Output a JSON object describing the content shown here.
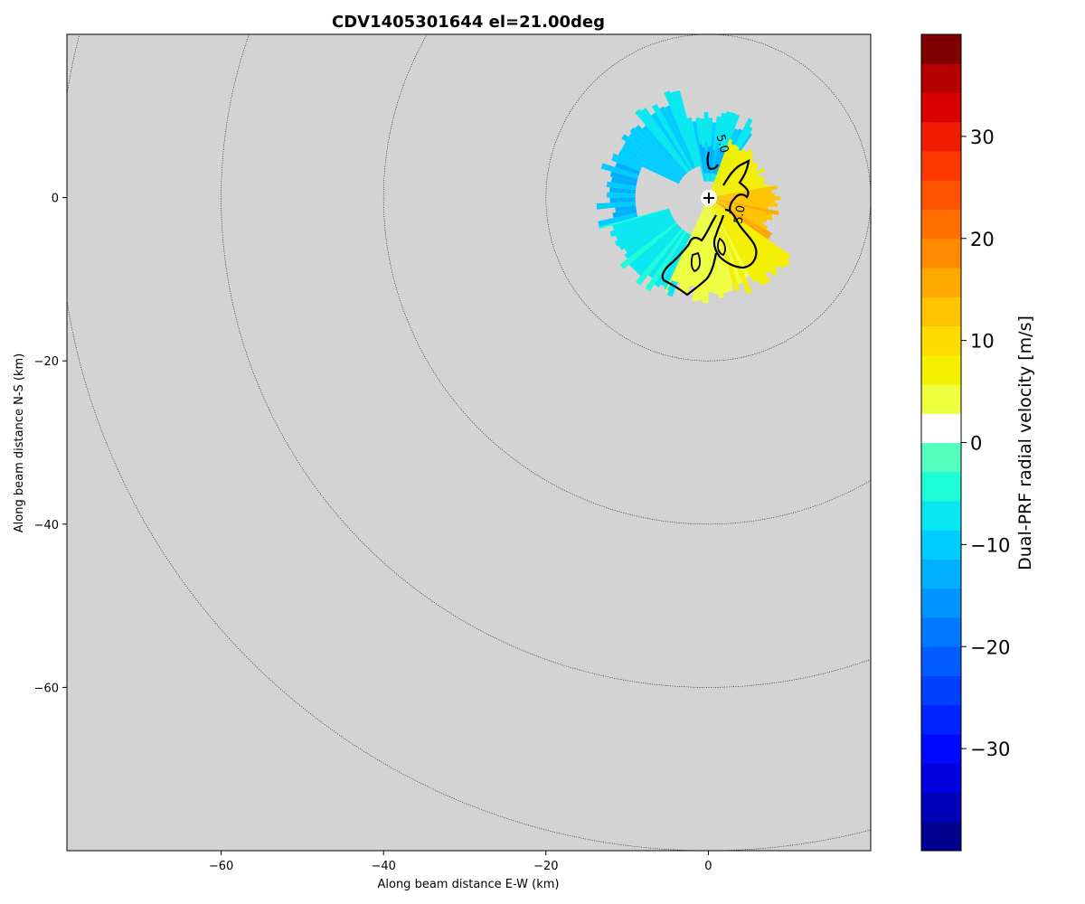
{
  "chart_data": {
    "type": "heatmap",
    "title": "CDV1405301644 el=21.00deg",
    "xlabel": "Along beam distance E-W (km)",
    "ylabel": "Along beam distance N-S (km)",
    "xlim": [
      -79,
      20
    ],
    "ylim": [
      -80,
      20
    ],
    "xticks": [
      -60,
      -40,
      -20,
      0
    ],
    "xtick_labels": [
      "−60",
      "−40",
      "−20",
      "0"
    ],
    "yticks": [
      0,
      -20,
      -40,
      -60
    ],
    "ytick_labels": [
      "0",
      "−20",
      "−40",
      "−60"
    ],
    "grid": false,
    "background": "#d3d3d3",
    "radar_center": [
      0,
      0
    ],
    "range_rings_km": [
      20,
      40,
      60,
      80
    ],
    "contour_level": 5.0,
    "contour_label": "5.0",
    "colorbar": {
      "label": "Dual-PRF radial velocity [m/s]",
      "vmin": -40,
      "vmax": 40,
      "levels": 28,
      "ticks": [
        30,
        20,
        10,
        0,
        -10,
        -20,
        -30
      ],
      "tick_labels": [
        "30",
        "20",
        "10",
        "0",
        "−10",
        "−20",
        "−30"
      ],
      "colors": [
        "#00008f",
        "#0000b7",
        "#0000df",
        "#0008ff",
        "#0024ff",
        "#0040ff",
        "#005cff",
        "#0078ff",
        "#0094ff",
        "#00b0ff",
        "#00ccff",
        "#08e8f0",
        "#1efdd8",
        "#55ffc0",
        "#ffffff",
        "#eeff40",
        "#f4f000",
        "#ffdc00",
        "#ffc400",
        "#ffa800",
        "#ff8c00",
        "#ff7000",
        "#ff5400",
        "#ff3800",
        "#f01c00",
        "#d80000",
        "#b40000",
        "#800000"
      ]
    },
    "sectors": [
      {
        "name": "northeast-cyan",
        "az": [
          345,
          35
        ],
        "r": [
          2,
          11
        ],
        "value": -8
      },
      {
        "name": "north-blue",
        "az": [
          350,
          20
        ],
        "r": [
          3,
          7
        ],
        "value": -12
      },
      {
        "name": "northwest-cyan",
        "az": [
          295,
          345
        ],
        "r": [
          4,
          14
        ],
        "value": -9
      },
      {
        "name": "west-blue",
        "az": [
          255,
          295
        ],
        "r": [
          9,
          14
        ],
        "value": -11
      },
      {
        "name": "southwest-cyan",
        "az": [
          200,
          255
        ],
        "r": [
          5,
          14
        ],
        "value": -6
      },
      {
        "name": "east-yellow",
        "az": [
          20,
          80
        ],
        "r": [
          1,
          8
        ],
        "value": 7
      },
      {
        "name": "east-orange",
        "az": [
          80,
          125
        ],
        "r": [
          1,
          9
        ],
        "value": 13
      },
      {
        "name": "southeast-yellow",
        "az": [
          125,
          165
        ],
        "r": [
          1,
          13
        ],
        "value": 6
      },
      {
        "name": "south-yellow",
        "az": [
          165,
          205
        ],
        "r": [
          1,
          13
        ],
        "value": 4
      }
    ]
  }
}
